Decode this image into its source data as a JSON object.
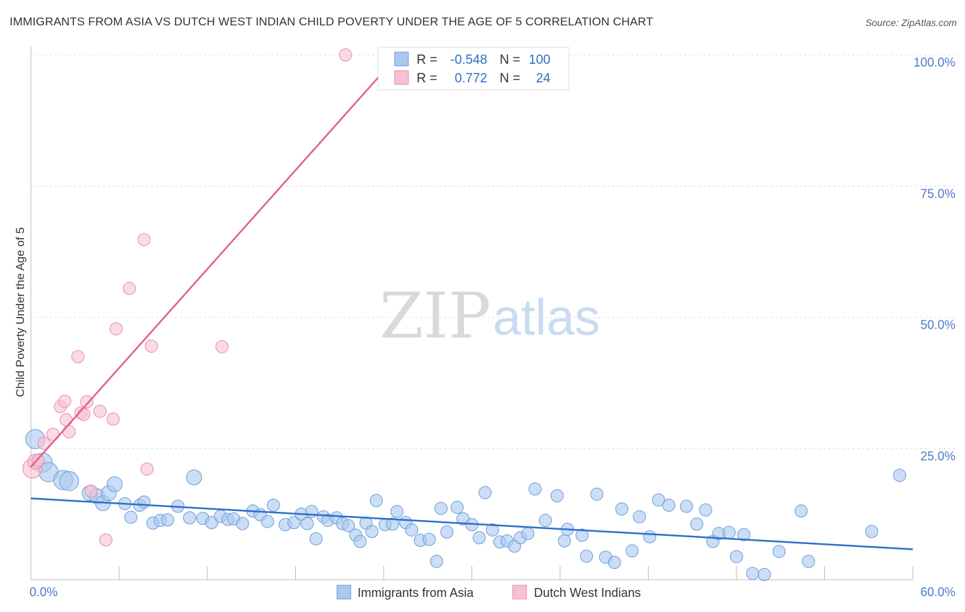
{
  "title": "IMMIGRANTS FROM ASIA VS DUTCH WEST INDIAN CHILD POVERTY UNDER THE AGE OF 5 CORRELATION CHART",
  "source": "Source: ZipAtlas.com",
  "watermark": {
    "zip": "ZIP",
    "atlas": "atlas"
  },
  "colors": {
    "blue_fill": "#a9c8f0",
    "blue_stroke": "#6a9bd8",
    "blue_line": "#2f6fc9",
    "pink_fill": "#f6c1d3",
    "pink_stroke": "#e98aaa",
    "pink_line": "#e0608e",
    "tick_text": "#4a7cc7"
  },
  "stats": {
    "blue": {
      "r_label": "R =",
      "r": "-0.548",
      "n_label": "N =",
      "n": "100"
    },
    "pink": {
      "r_label": "R =",
      "r": "0.772",
      "n_label": "N =",
      "n": "24"
    }
  },
  "chart_data": {
    "type": "scatter",
    "title": "IMMIGRANTS FROM ASIA VS DUTCH WEST INDIAN CHILD POVERTY UNDER THE AGE OF 5 CORRELATION CHART",
    "xlabel": "",
    "ylabel": "Child Poverty Under the Age of 5",
    "xlim": [
      0,
      60
    ],
    "ylim": [
      0,
      100
    ],
    "x_tick_labels": [
      "0.0%",
      "60.0%"
    ],
    "y_ticks": [
      25,
      50,
      75,
      100
    ],
    "y_tick_labels": [
      "25.0%",
      "50.0%",
      "75.0%",
      "100.0%"
    ],
    "legend_position": "bottom",
    "series": [
      {
        "name": "Immigrants from Asia",
        "color": "#a9c8f0",
        "trend": {
          "x": [
            0,
            60
          ],
          "y": [
            15.5,
            5.8
          ]
        },
        "points": [
          [
            0.3,
            26.8,
            3
          ],
          [
            0.8,
            22.3,
            3
          ],
          [
            1.2,
            20.5,
            3
          ],
          [
            2.2,
            19.0,
            3
          ],
          [
            2.6,
            18.8,
            3
          ],
          [
            4.0,
            16.5,
            2
          ],
          [
            4.5,
            15.9,
            2
          ],
          [
            4.9,
            14.6,
            2
          ],
          [
            5.3,
            16.5,
            2
          ],
          [
            5.7,
            18.2,
            2
          ],
          [
            6.4,
            14.5,
            1
          ],
          [
            6.8,
            11.9,
            1
          ],
          [
            7.4,
            14.2,
            1
          ],
          [
            7.7,
            14.8,
            1
          ],
          [
            8.3,
            10.8,
            1
          ],
          [
            8.8,
            11.3,
            1
          ],
          [
            9.3,
            11.4,
            1
          ],
          [
            10.0,
            14.0,
            1
          ],
          [
            10.8,
            11.8,
            1
          ],
          [
            11.1,
            19.5,
            2
          ],
          [
            11.7,
            11.7,
            1
          ],
          [
            12.3,
            10.9,
            1
          ],
          [
            12.9,
            12.1,
            1
          ],
          [
            13.4,
            11.5,
            1
          ],
          [
            13.8,
            11.6,
            1
          ],
          [
            14.4,
            10.7,
            1
          ],
          [
            15.1,
            13.1,
            1
          ],
          [
            15.6,
            12.4,
            1
          ],
          [
            16.1,
            11.1,
            1
          ],
          [
            16.5,
            14.2,
            1
          ],
          [
            17.3,
            10.5,
            1
          ],
          [
            17.9,
            10.9,
            1
          ],
          [
            18.4,
            12.5,
            1
          ],
          [
            18.8,
            10.7,
            1
          ],
          [
            19.1,
            13.0,
            1
          ],
          [
            19.4,
            7.8,
            1
          ],
          [
            19.9,
            12.0,
            1
          ],
          [
            20.2,
            11.3,
            1
          ],
          [
            20.8,
            11.8,
            1
          ],
          [
            21.2,
            10.7,
            1
          ],
          [
            21.6,
            10.3,
            1
          ],
          [
            22.1,
            8.5,
            1
          ],
          [
            22.4,
            7.3,
            1
          ],
          [
            22.8,
            10.8,
            1
          ],
          [
            23.2,
            9.2,
            1
          ],
          [
            23.5,
            15.1,
            1
          ],
          [
            24.1,
            10.5,
            1
          ],
          [
            24.6,
            10.6,
            1
          ],
          [
            24.9,
            13.0,
            1
          ],
          [
            25.5,
            10.9,
            1
          ],
          [
            25.9,
            9.5,
            1
          ],
          [
            26.5,
            7.5,
            1
          ],
          [
            27.1,
            7.7,
            1
          ],
          [
            27.6,
            3.5,
            1
          ],
          [
            27.9,
            13.6,
            1
          ],
          [
            28.3,
            9.1,
            1
          ],
          [
            29.0,
            13.8,
            1
          ],
          [
            29.4,
            11.6,
            1
          ],
          [
            30.0,
            10.5,
            1
          ],
          [
            30.5,
            8.0,
            1
          ],
          [
            30.9,
            16.6,
            1
          ],
          [
            31.4,
            9.5,
            1
          ],
          [
            31.9,
            7.2,
            1
          ],
          [
            32.4,
            7.4,
            1
          ],
          [
            32.9,
            6.4,
            1
          ],
          [
            33.3,
            8.0,
            1
          ],
          [
            33.8,
            8.8,
            1
          ],
          [
            34.3,
            17.3,
            1
          ],
          [
            35.0,
            11.3,
            1
          ],
          [
            35.8,
            16.0,
            1
          ],
          [
            36.3,
            7.4,
            1
          ],
          [
            36.5,
            9.6,
            1
          ],
          [
            37.5,
            8.5,
            1
          ],
          [
            37.8,
            4.5,
            1
          ],
          [
            38.5,
            16.3,
            1
          ],
          [
            39.1,
            4.3,
            1
          ],
          [
            39.7,
            3.3,
            1
          ],
          [
            40.2,
            13.5,
            1
          ],
          [
            40.9,
            5.5,
            1
          ],
          [
            41.4,
            12.0,
            1
          ],
          [
            42.1,
            8.2,
            1
          ],
          [
            42.7,
            15.2,
            1
          ],
          [
            43.4,
            14.2,
            1
          ],
          [
            44.6,
            14.0,
            1
          ],
          [
            45.3,
            10.6,
            1
          ],
          [
            45.9,
            13.3,
            1
          ],
          [
            46.4,
            7.3,
            1
          ],
          [
            46.8,
            8.8,
            1
          ],
          [
            47.5,
            9.0,
            1
          ],
          [
            48.0,
            4.4,
            1
          ],
          [
            48.5,
            8.6,
            1
          ],
          [
            49.1,
            1.2,
            1
          ],
          [
            49.9,
            1.0,
            1
          ],
          [
            50.9,
            5.4,
            1
          ],
          [
            52.4,
            13.1,
            1
          ],
          [
            52.9,
            3.5,
            1
          ],
          [
            57.2,
            9.2,
            1
          ],
          [
            59.1,
            19.9,
            1
          ]
        ]
      },
      {
        "name": "Dutch West Indians",
        "color": "#f6c1d3",
        "trend": {
          "x": [
            0,
            25.0
          ],
          "y": [
            21.5,
            100
          ]
        },
        "points": [
          [
            0.1,
            21.2,
            3
          ],
          [
            0.3,
            22.5,
            2
          ],
          [
            0.5,
            22.8,
            1
          ],
          [
            0.9,
            26.0,
            1
          ],
          [
            1.5,
            27.7,
            1
          ],
          [
            2.0,
            33.0,
            1
          ],
          [
            2.3,
            34.0,
            1
          ],
          [
            2.4,
            30.5,
            1
          ],
          [
            2.6,
            28.2,
            1
          ],
          [
            3.2,
            42.5,
            1
          ],
          [
            3.4,
            31.8,
            1
          ],
          [
            3.6,
            31.5,
            1
          ],
          [
            3.8,
            33.9,
            1
          ],
          [
            4.1,
            16.9,
            1
          ],
          [
            4.7,
            32.1,
            1
          ],
          [
            5.1,
            7.6,
            1
          ],
          [
            5.6,
            30.6,
            1
          ],
          [
            5.8,
            47.8,
            1
          ],
          [
            6.7,
            55.5,
            1
          ],
          [
            7.7,
            64.8,
            1
          ],
          [
            7.9,
            21.1,
            1
          ],
          [
            8.2,
            44.5,
            1
          ],
          [
            13.0,
            44.4,
            1
          ],
          [
            21.4,
            100,
            1
          ]
        ]
      }
    ]
  },
  "legend": {
    "blue_label": "Immigrants from Asia",
    "pink_label": "Dutch West Indians"
  }
}
